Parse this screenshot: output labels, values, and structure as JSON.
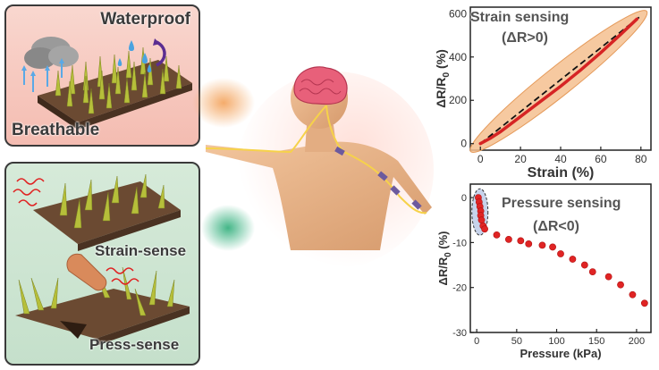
{
  "panels": {
    "waterproof": "Waterproof",
    "breathable": "Breathable",
    "strain_sense": "Strain-sense",
    "press_sense": "Press-sense"
  },
  "chart_data": [
    {
      "type": "line",
      "title": "Strain sensing",
      "subtitle": "(ΔR>0)",
      "xlabel": "Strain (%)",
      "ylabel": "ΔR/R0 (%)",
      "xlim": [
        -5,
        85
      ],
      "ylim": [
        -30,
        630
      ],
      "x_ticks": [
        0,
        20,
        40,
        60,
        80
      ],
      "y_ticks": [
        0,
        200,
        400,
        600
      ],
      "series": [
        {
          "x": [
            0,
            5,
            10,
            20,
            30,
            40,
            50,
            60,
            70,
            78
          ],
          "y": [
            0,
            25,
            55,
            125,
            195,
            265,
            340,
            420,
            505,
            575
          ]
        }
      ],
      "reference_line": {
        "x": [
          0,
          80
        ],
        "y": [
          0,
          590
        ]
      }
    },
    {
      "type": "scatter",
      "title": "Pressure sensing",
      "subtitle": "(ΔR<0)",
      "xlabel": "Pressure (kPa)",
      "ylabel": "ΔR/R0 (%)",
      "xlim": [
        -8,
        218
      ],
      "ylim": [
        -30,
        3
      ],
      "x_ticks": [
        0,
        50,
        100,
        150,
        200
      ],
      "y_ticks": [
        0,
        -10,
        -20,
        -30
      ],
      "series": [
        {
          "x": [
            2,
            3,
            4,
            5,
            5,
            6,
            8,
            10,
            25,
            40,
            55,
            65,
            82,
            95,
            105,
            120,
            135,
            145,
            165,
            180,
            195,
            210
          ],
          "y": [
            0,
            -1,
            -2,
            -3,
            -4,
            -5,
            -6.3,
            -7,
            -8.3,
            -9.3,
            -9.6,
            -10.3,
            -10.6,
            -11,
            -12.5,
            -13.7,
            -15,
            -16.5,
            -17.6,
            -19.4,
            -21.6,
            -23.5
          ]
        }
      ]
    }
  ]
}
